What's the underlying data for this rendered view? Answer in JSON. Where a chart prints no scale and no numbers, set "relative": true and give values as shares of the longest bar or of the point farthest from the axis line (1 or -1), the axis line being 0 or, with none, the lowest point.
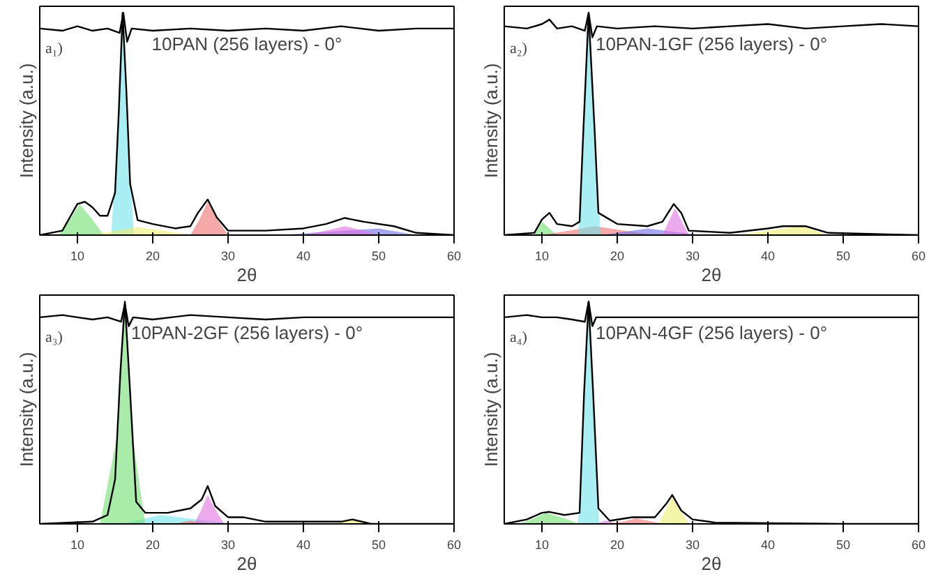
{
  "chart_data": [
    {
      "type": "line",
      "title": "10PAN (256 layers) - 0°",
      "xlabel": "2θ",
      "ylabel": "Intensity (a.u.)",
      "annotations": [
        "a₁)"
      ],
      "relative": true,
      "tick_labels": "x",
      "xlim": [
        5,
        60
      ],
      "xticks": [
        10,
        20,
        30,
        40,
        50,
        60
      ],
      "series": [
        {
          "type": "area",
          "color": "#6fe06f",
          "x": [
            7.5,
            9,
            10.3,
            12,
            13.5
          ],
          "values": [
            0,
            0.07,
            0.14,
            0.07,
            0
          ]
        },
        {
          "type": "area",
          "color": "#6fe3ea",
          "x": [
            14.5,
            15.3,
            16,
            16.7,
            17.5
          ],
          "values": [
            0,
            0.45,
            0.98,
            0.45,
            0
          ]
        },
        {
          "type": "area",
          "color": "#eeee70",
          "x": [
            12,
            15,
            18,
            21.5,
            25
          ],
          "values": [
            0,
            0.02,
            0.035,
            0.02,
            0
          ]
        },
        {
          "type": "area",
          "color": "#f07070",
          "x": [
            25,
            26.2,
            27.3,
            28.6,
            30
          ],
          "values": [
            0,
            0.07,
            0.15,
            0.07,
            0
          ]
        },
        {
          "type": "area",
          "color": "#6a6ae8",
          "x": [
            37,
            43,
            50,
            52.5,
            55
          ],
          "values": [
            0,
            0.015,
            0.03,
            0.015,
            0
          ]
        },
        {
          "type": "area",
          "color": "#e070e0",
          "x": [
            40,
            43,
            45.5,
            48,
            50
          ],
          "values": [
            0,
            0.02,
            0.04,
            0.02,
            0
          ]
        },
        {
          "color": "#000000",
          "x": [
            5,
            8,
            9,
            10,
            11,
            12,
            13,
            14,
            15,
            15.5,
            16,
            16.5,
            17,
            18,
            20,
            23,
            25,
            26,
            27.3,
            28.5,
            30,
            35,
            40,
            43,
            45.5,
            48,
            52,
            55,
            60
          ],
          "values": [
            0,
            0.02,
            0.08,
            0.14,
            0.15,
            0.125,
            0.087,
            0.087,
            0.19,
            0.56,
            1,
            0.65,
            0.23,
            0.067,
            0.05,
            0.03,
            0.04,
            0.1,
            0.16,
            0.08,
            0.02,
            0.02,
            0.03,
            0.05,
            0.077,
            0.06,
            0.04,
            0.01,
            0
          ]
        },
        {
          "color": "#000000",
          "x": [
            5,
            8,
            10,
            12,
            14,
            15.6,
            16.1,
            16.6,
            17.2,
            20,
            25,
            30,
            35,
            40,
            45,
            50,
            55,
            60
          ],
          "values": [
            0.93,
            0.92,
            0.94,
            0.92,
            0.93,
            0.91,
            1,
            0.87,
            0.93,
            0.92,
            0.93,
            0.92,
            0.93,
            0.92,
            0.94,
            0.92,
            0.93,
            0.93
          ]
        }
      ]
    },
    {
      "type": "line",
      "title": "10PAN-1GF (256 layers) - 0°",
      "xlabel": "2θ",
      "ylabel": "Intensity (a.u.)",
      "annotations": [
        "a₂)"
      ],
      "relative": true,
      "tick_labels": "x",
      "xlim": [
        5,
        60
      ],
      "xticks": [
        10,
        20,
        30,
        40,
        50,
        60
      ],
      "series": [
        {
          "type": "area",
          "color": "#6fe06f",
          "x": [
            9,
            9.5,
            10,
            11,
            12
          ],
          "values": [
            0,
            0.03,
            0.06,
            0.03,
            0
          ]
        },
        {
          "type": "area",
          "color": "#f07070",
          "x": [
            10,
            13.5,
            17,
            21,
            25
          ],
          "values": [
            0,
            0.02,
            0.04,
            0.02,
            0
          ]
        },
        {
          "type": "area",
          "color": "#6a6ae8",
          "x": [
            18,
            21,
            24,
            27.5,
            31
          ],
          "values": [
            0,
            0.015,
            0.03,
            0.015,
            0
          ]
        },
        {
          "type": "area",
          "color": "#6fe3ea",
          "x": [
            14.8,
            15.5,
            16.2,
            17,
            17.8
          ],
          "values": [
            0,
            0.45,
            0.98,
            0.45,
            0
          ]
        },
        {
          "type": "area",
          "color": "#e070e0",
          "x": [
            26,
            26.8,
            27.7,
            28.6,
            29.5
          ],
          "values": [
            0,
            0.06,
            0.12,
            0.06,
            0
          ]
        },
        {
          "type": "area",
          "color": "#eeee70",
          "x": [
            36,
            40,
            44.5,
            46.3,
            48
          ],
          "values": [
            0,
            0.02,
            0.04,
            0.02,
            0
          ]
        },
        {
          "color": "#000000",
          "x": [
            5,
            9,
            10,
            11,
            12,
            14,
            15,
            15.5,
            16.2,
            17,
            17.5,
            20,
            24,
            26,
            27.5,
            28.5,
            29.5,
            35,
            40,
            42,
            45,
            48,
            60
          ],
          "values": [
            0,
            0.01,
            0.07,
            0.1,
            0.05,
            0.04,
            0.06,
            0.47,
            1,
            0.47,
            0.1,
            0.05,
            0.04,
            0.06,
            0.14,
            0.1,
            0.02,
            0.01,
            0.03,
            0.04,
            0.04,
            0.01,
            0
          ]
        },
        {
          "color": "#000000",
          "x": [
            5,
            8,
            10,
            11,
            12,
            14,
            15.7,
            16.2,
            16.7,
            17.3,
            20,
            25,
            30,
            35,
            40,
            45,
            50,
            55,
            60
          ],
          "values": [
            0.94,
            0.93,
            0.95,
            0.97,
            0.93,
            0.94,
            0.92,
            1,
            0.89,
            0.94,
            0.93,
            0.94,
            0.93,
            0.94,
            0.95,
            0.93,
            0.94,
            0.95,
            0.94
          ]
        }
      ]
    },
    {
      "type": "line",
      "title": "10PAN-2GF (256 layers) - 0°",
      "xlabel": "2θ",
      "ylabel": "Intensity (a.u.)",
      "annotations": [
        "a₃)"
      ],
      "relative": true,
      "tick_labels": "x",
      "xlim": [
        5,
        60
      ],
      "xticks": [
        10,
        20,
        30,
        40,
        50,
        60
      ],
      "series": [
        {
          "type": "area",
          "color": "#6fe3ea",
          "x": [
            16,
            18.5,
            21,
            26,
            31
          ],
          "values": [
            0,
            0.02,
            0.04,
            0.02,
            0
          ]
        },
        {
          "type": "area",
          "color": "#f07070",
          "x": [
            23,
            24,
            25,
            26.5,
            28
          ],
          "values": [
            0,
            0.008,
            0.015,
            0.008,
            0
          ]
        },
        {
          "type": "area",
          "color": "#6fe06f",
          "x": [
            13,
            15.3,
            16.3,
            17.3,
            19
          ],
          "values": [
            0,
            0.4,
            0.98,
            0.4,
            0
          ]
        },
        {
          "type": "area",
          "color": "#e070e0",
          "x": [
            25.5,
            26.4,
            27.3,
            28.4,
            29.5
          ],
          "values": [
            0,
            0.06,
            0.13,
            0.06,
            0
          ]
        },
        {
          "type": "area",
          "color": "#eeee70",
          "x": [
            44,
            45.3,
            46.5,
            47.8,
            49
          ],
          "values": [
            0,
            0.01,
            0.02,
            0.01,
            0
          ]
        },
        {
          "color": "#000000",
          "x": [
            5,
            12,
            14,
            15,
            15.7,
            16.3,
            17,
            17.8,
            19,
            22,
            25,
            26.5,
            27.3,
            28.3,
            30,
            32,
            35,
            45,
            46.5,
            49,
            60
          ],
          "values": [
            0,
            0.01,
            0.04,
            0.2,
            0.68,
            1,
            0.59,
            0.1,
            0.05,
            0.05,
            0.07,
            0.11,
            0.17,
            0.08,
            0.03,
            0.03,
            0.01,
            0.01,
            0.02,
            0,
            0
          ]
        },
        {
          "color": "#000000",
          "x": [
            5,
            8,
            10,
            12,
            14,
            15.8,
            16.3,
            16.8,
            17.4,
            20,
            25,
            30,
            35,
            40,
            45,
            50,
            55,
            60
          ],
          "values": [
            0.93,
            0.94,
            0.93,
            0.92,
            0.93,
            0.91,
            0.99,
            0.89,
            0.93,
            0.92,
            0.94,
            0.93,
            0.92,
            0.93,
            0.93,
            0.93,
            0.93,
            0.93
          ]
        }
      ]
    },
    {
      "type": "line",
      "title": "10PAN-4GF (256 layers) - 0°",
      "xlabel": "2θ",
      "ylabel": "Intensity (a.u.)",
      "annotations": [
        "a₄)"
      ],
      "relative": true,
      "tick_labels": "x",
      "xlim": [
        5,
        60
      ],
      "xticks": [
        10,
        20,
        30,
        40,
        50,
        60
      ],
      "series": [
        {
          "type": "area",
          "color": "#6fe06f",
          "x": [
            7,
            9,
            10.5,
            13,
            15
          ],
          "values": [
            0,
            0.025,
            0.05,
            0.025,
            0
          ]
        },
        {
          "type": "area",
          "color": "#e070e0",
          "x": [
            17,
            17.8,
            18.5,
            19.3,
            20
          ],
          "values": [
            0,
            0.008,
            0.015,
            0.008,
            0
          ]
        },
        {
          "type": "area",
          "color": "#f07070",
          "x": [
            19,
            21,
            22.5,
            24.5,
            26
          ],
          "values": [
            0,
            0.012,
            0.025,
            0.012,
            0
          ]
        },
        {
          "type": "area",
          "color": "#6fe3ea",
          "x": [
            14.8,
            15.5,
            16.2,
            16.9,
            17.6
          ],
          "values": [
            0,
            0.45,
            0.98,
            0.45,
            0
          ]
        },
        {
          "type": "area",
          "color": "#eeee70",
          "x": [
            25.5,
            26.4,
            27.3,
            28.4,
            29.5
          ],
          "values": [
            0,
            0.06,
            0.12,
            0.06,
            0
          ]
        },
        {
          "type": "area",
          "color": "#6a6ae8",
          "x": [
            44,
            45,
            46,
            49,
            52
          ],
          "values": [
            0,
            0.003,
            0.005,
            0.003,
            0
          ]
        },
        {
          "color": "#000000",
          "x": [
            5,
            8,
            10,
            11,
            13,
            15,
            15.6,
            16.2,
            16.8,
            17.5,
            19,
            22,
            25,
            26.5,
            27.3,
            28.5,
            30,
            33,
            50,
            60
          ],
          "values": [
            0,
            0.02,
            0.05,
            0.054,
            0.04,
            0.05,
            0.59,
            1,
            0.59,
            0.07,
            0.014,
            0.03,
            0.03,
            0.09,
            0.13,
            0.06,
            0.02,
            0.006,
            0,
            0
          ]
        },
        {
          "color": "#000000",
          "x": [
            5,
            8,
            10,
            12,
            14,
            15.7,
            16.2,
            16.7,
            17.2,
            20,
            25,
            30,
            35,
            40,
            45,
            50,
            55,
            60
          ],
          "values": [
            0.93,
            0.94,
            0.93,
            0.93,
            0.92,
            0.91,
            1,
            0.89,
            0.93,
            0.93,
            0.93,
            0.93,
            0.93,
            0.93,
            0.93,
            0.93,
            0.93,
            0.93
          ]
        }
      ]
    }
  ]
}
